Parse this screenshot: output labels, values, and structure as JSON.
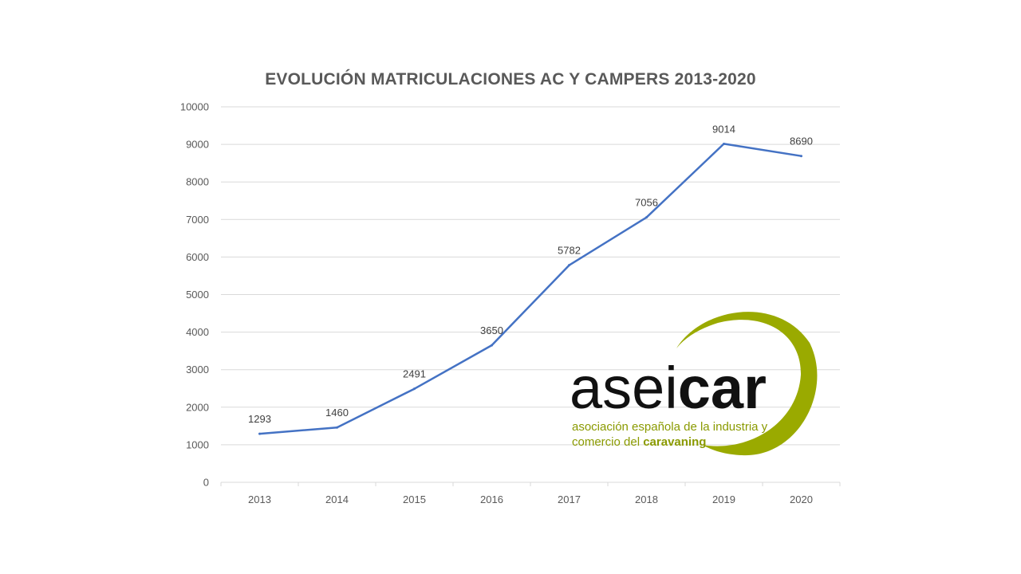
{
  "chart_data": {
    "type": "line",
    "title": "EVOLUCIÓN MATRICULACIONES AC Y CAMPERS 2013-2020",
    "categories": [
      "2013",
      "2014",
      "2015",
      "2016",
      "2017",
      "2018",
      "2019",
      "2020"
    ],
    "series": [
      {
        "values": [
          1293,
          1460,
          2491,
          3650,
          5782,
          7056,
          9014,
          8690
        ],
        "color": "#4472c4"
      }
    ],
    "data_labels": [
      "1293",
      "1460",
      "2491",
      "3650",
      "5782",
      "7056",
      "9014",
      "8690"
    ],
    "ylim": [
      0,
      10000
    ],
    "y_ticks": [
      "0",
      "1000",
      "2000",
      "3000",
      "4000",
      "5000",
      "6000",
      "7000",
      "8000",
      "9000",
      "10000"
    ],
    "grid": true,
    "legend": "none"
  },
  "logo": {
    "word_regular": "asei",
    "word_bold": "car",
    "tagline_line1": "asociación española de la industria y",
    "tagline_line2_regular": "comercio del ",
    "tagline_line2_bold": "caravaning",
    "accent_color": "#8a9a00"
  }
}
